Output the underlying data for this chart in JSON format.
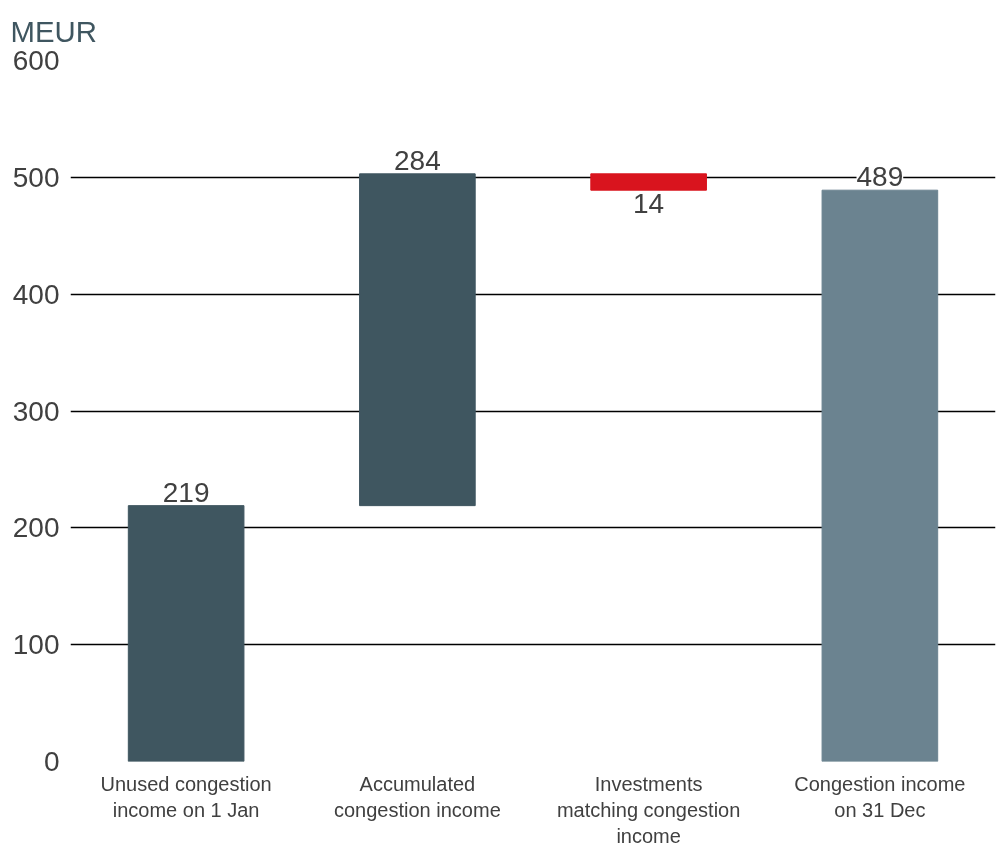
{
  "chart_data": {
    "type": "bar",
    "ylabel": "MEUR",
    "categories": [
      "Unused congestion income on 1 Jan",
      "Accumulated congestion income",
      "Investments matching congestion income",
      "Congestion income on 31 Dec"
    ],
    "values": [
      219,
      284,
      -14,
      489
    ],
    "base": [
      0,
      219,
      503,
      0
    ],
    "colors": [
      "#3f5660",
      "#3f5660",
      "#d9141e",
      "#6b8390"
    ],
    "value_labels": [
      "219",
      "284",
      "14",
      "489"
    ],
    "ylim": [
      0,
      600
    ],
    "yticks": [
      0,
      100,
      200,
      300,
      400,
      500,
      600
    ],
    "grid": "y"
  }
}
